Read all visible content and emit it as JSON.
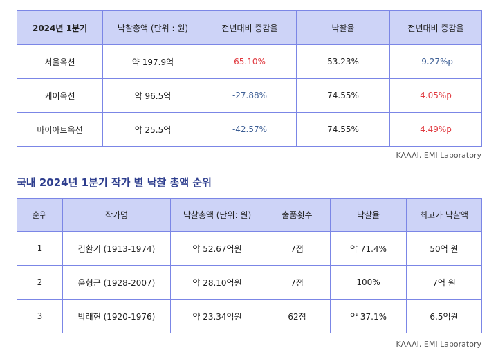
{
  "auction_table": {
    "headers": [
      "2024년 1분기",
      "낙찰총액 (단위 : 원)",
      "전년대비 증감율",
      "낙찰율",
      "전년대비 증감율"
    ],
    "rows": [
      {
        "name": "서울옥션",
        "total": "약 197.9억",
        "yoy_total": "65.10%",
        "rate": "53.23%",
        "yoy_rate": "-9.27%p"
      },
      {
        "name": "케이옥션",
        "total": "약 96.5억",
        "yoy_total": "-27.88%",
        "rate": "74.55%",
        "yoy_rate": "4.05%p"
      },
      {
        "name": "마이아트옥션",
        "total": "약 25.5억",
        "yoy_total": "-42.57%",
        "rate": "74.55%",
        "yoy_rate": "4.49%p"
      }
    ],
    "source": "KAAAI, EMI Laboratory"
  },
  "artist_section": {
    "title": "국내 2024년 1분기 작가 별 낙찰 총액 순위"
  },
  "artist_table": {
    "headers": [
      "순위",
      "작가명",
      "낙찰총액 (단위: 원)",
      "출품횟수",
      "낙찰율",
      "최고가 낙찰액"
    ],
    "rows": [
      {
        "rank": "1",
        "artist": "김환기 (1913-1974)",
        "total": "약 52.67억원",
        "count": "7점",
        "rate": "약 71.4%",
        "top": "50억 원"
      },
      {
        "rank": "2",
        "artist": "윤형근 (1928-2007)",
        "total": "약 28.10억원",
        "count": "7점",
        "rate": "100%",
        "top": "7억 원"
      },
      {
        "rank": "3",
        "artist": "박래현 (1920-1976)",
        "total": "약 23.34억원",
        "count": "62점",
        "rate": "약 37.1%",
        "top": "6.5억원"
      }
    ],
    "source": "KAAAI, EMI Laboratory"
  },
  "colors": {
    "header_bg": "#cdd3f7",
    "border": "#7b86e6",
    "increase": "#e0383e",
    "decrease": "#3e5f95",
    "title": "#2e3e8e"
  }
}
